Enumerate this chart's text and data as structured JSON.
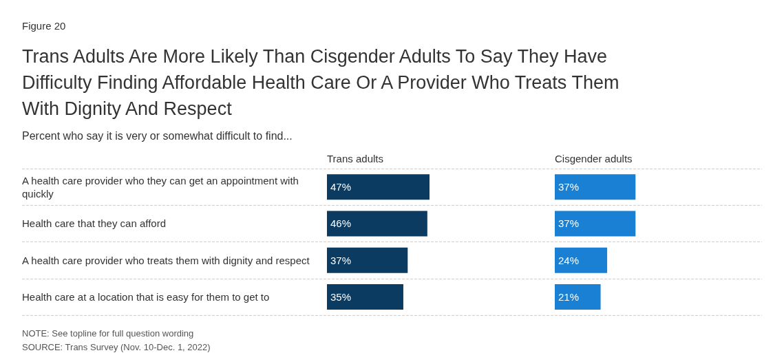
{
  "chart_data": [
    {
      "type": "bar",
      "orientation": "horizontal",
      "title": "Trans Adults Are More Likely Than Cisgender Adults To Say They Have Difficulty Finding Affordable Health Care Or A Provider Who Treats Them With Dignity And Respect",
      "subtitle": "Percent who say it is very or somewhat difficult to find...",
      "annotations": [
        "Figure 20",
        "NOTE: See topline for full question wording",
        "SOURCE: Trans Survey (Nov. 10-Dec. 1, 2022)"
      ],
      "categories": [
        "A health care provider who they can get an appointment with quickly",
        "Health care that they can afford",
        "A health care provider who treats them with dignity and respect",
        "Health care at a location that is easy for them to get to"
      ],
      "series": [
        {
          "name": "Trans adults",
          "color": "#0b3b61",
          "values": [
            47,
            46,
            37,
            35
          ],
          "value_labels": [
            "47%",
            "46%",
            "37%",
            "35%"
          ]
        }
      ],
      "grid": "y",
      "legend": false
    },
    {
      "type": "bar",
      "orientation": "horizontal",
      "categories": [
        "A health care provider who they can get an appointment with quickly",
        "Health care that they can afford",
        "A health care provider who treats them with dignity and respect",
        "Health care at a location that is easy for them to get to"
      ],
      "series": [
        {
          "name": "Cisgender adults",
          "color": "#1a80d3",
          "values": [
            37,
            37,
            24,
            21
          ],
          "value_labels": [
            "37%",
            "37%",
            "24%",
            "21%"
          ]
        }
      ],
      "tick_labels": false,
      "legend": false
    }
  ]
}
